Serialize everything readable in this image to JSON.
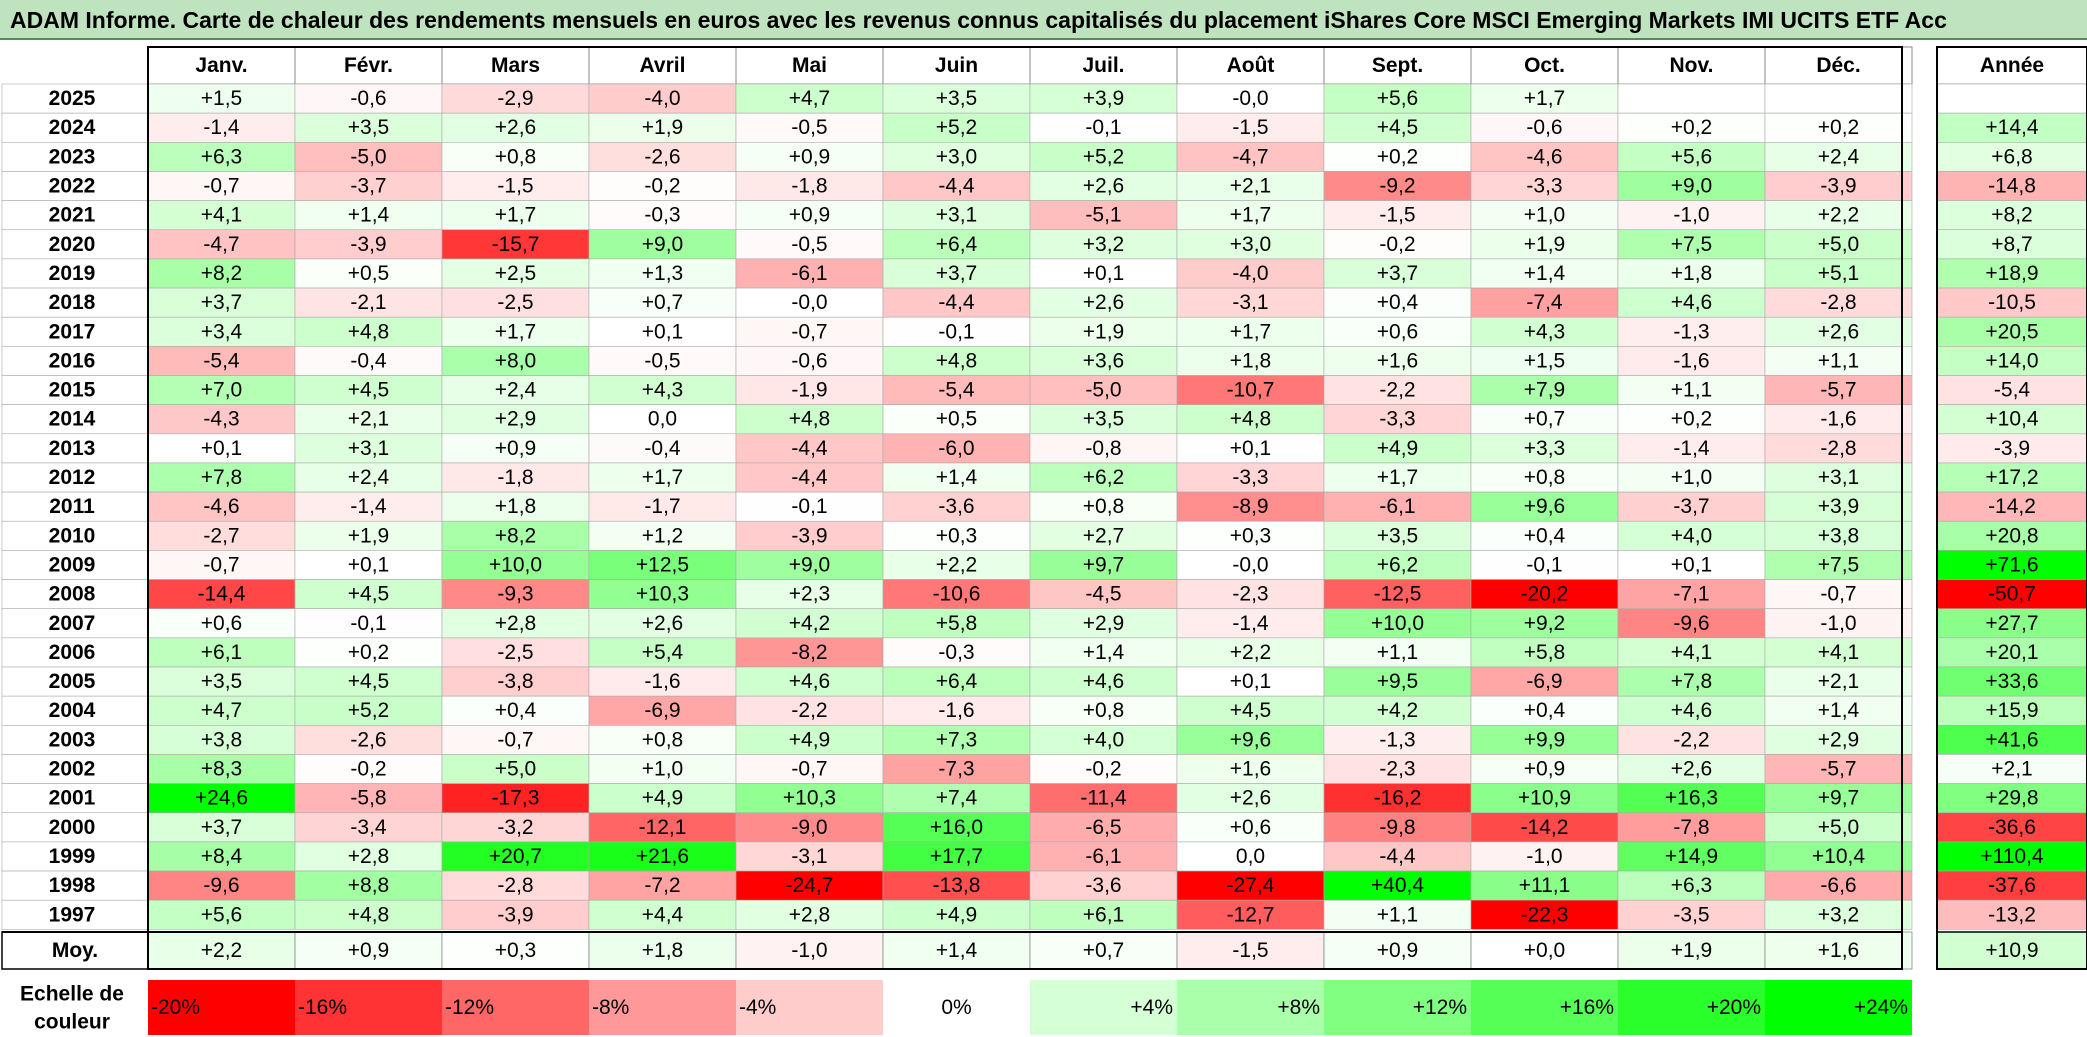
{
  "title": "ADAM Informe. Carte de chaleur des rendements mensuels en euros avec les revenus connus capitalisés du placement iShares Core MSCI Emerging Markets IMI UCITS ETF Acc",
  "months": [
    "Janv.",
    "Févr.",
    "Mars",
    "Avril",
    "Mai",
    "Juin",
    "Juil.",
    "Août",
    "Sept.",
    "Oct.",
    "Nov.",
    "Déc."
  ],
  "year_header": "Année",
  "avg_label": "Moy.",
  "scale_label": "Echelle de couleur",
  "colors": {
    "neg_max": "#ff0000",
    "pos_max": "#00ff00",
    "neutral": "#ffffff",
    "title_bg": "#bfe3bf",
    "border": "#000000"
  },
  "chart_data": {
    "type": "heatmap",
    "title": "ADAM Informe. Carte de chaleur des rendements mensuels en euros avec les revenus connus capitalisés du placement iShares Core MSCI Emerging Markets IMI UCITS ETF Acc",
    "color_scale": [
      -20,
      24
    ],
    "rows": [
      {
        "year": "2025",
        "months": [
          "+1,5",
          "-0,6",
          "-2,9",
          "-4,0",
          "+4,7",
          "+3,5",
          "+3,9",
          "-0,0",
          "+5,6",
          "+1,7",
          "",
          ""
        ],
        "annual": ""
      },
      {
        "year": "2024",
        "months": [
          "-1,4",
          "+3,5",
          "+2,6",
          "+1,9",
          "-0,5",
          "+5,2",
          "-0,1",
          "-1,5",
          "+4,5",
          "-0,6",
          "+0,2",
          "+0,2"
        ],
        "annual": "+14,4"
      },
      {
        "year": "2023",
        "months": [
          "+6,3",
          "-5,0",
          "+0,8",
          "-2,6",
          "+0,9",
          "+3,0",
          "+5,2",
          "-4,7",
          "+0,2",
          "-4,6",
          "+5,6",
          "+2,4"
        ],
        "annual": "+6,8"
      },
      {
        "year": "2022",
        "months": [
          "-0,7",
          "-3,7",
          "-1,5",
          "-0,2",
          "-1,8",
          "-4,4",
          "+2,6",
          "+2,1",
          "-9,2",
          "-3,3",
          "+9,0",
          "-3,9"
        ],
        "annual": "-14,8"
      },
      {
        "year": "2021",
        "months": [
          "+4,1",
          "+1,4",
          "+1,7",
          "-0,3",
          "+0,9",
          "+3,1",
          "-5,1",
          "+1,7",
          "-1,5",
          "+1,0",
          "-1,0",
          "+2,2"
        ],
        "annual": "+8,2"
      },
      {
        "year": "2020",
        "months": [
          "-4,7",
          "-3,9",
          "-15,7",
          "+9,0",
          "-0,5",
          "+6,4",
          "+3,2",
          "+3,0",
          "-0,2",
          "+1,9",
          "+7,5",
          "+5,0"
        ],
        "annual": "+8,7"
      },
      {
        "year": "2019",
        "months": [
          "+8,2",
          "+0,5",
          "+2,5",
          "+1,3",
          "-6,1",
          "+3,7",
          "+0,1",
          "-4,0",
          "+3,7",
          "+1,4",
          "+1,8",
          "+5,1"
        ],
        "annual": "+18,9"
      },
      {
        "year": "2018",
        "months": [
          "+3,7",
          "-2,1",
          "-2,5",
          "+0,7",
          "-0,0",
          "-4,4",
          "+2,6",
          "-3,1",
          "+0,4",
          "-7,4",
          "+4,6",
          "-2,8"
        ],
        "annual": "-10,5"
      },
      {
        "year": "2017",
        "months": [
          "+3,4",
          "+4,8",
          "+1,7",
          "+0,1",
          "-0,7",
          "-0,1",
          "+1,9",
          "+1,7",
          "+0,6",
          "+4,3",
          "-1,3",
          "+2,6"
        ],
        "annual": "+20,5"
      },
      {
        "year": "2016",
        "months": [
          "-5,4",
          "-0,4",
          "+8,0",
          "-0,5",
          "-0,6",
          "+4,8",
          "+3,6",
          "+1,8",
          "+1,6",
          "+1,5",
          "-1,6",
          "+1,1"
        ],
        "annual": "+14,0"
      },
      {
        "year": "2015",
        "months": [
          "+7,0",
          "+4,5",
          "+2,4",
          "+4,3",
          "-1,9",
          "-5,4",
          "-5,0",
          "-10,7",
          "-2,2",
          "+7,9",
          "+1,1",
          "-5,7"
        ],
        "annual": "-5,4"
      },
      {
        "year": "2014",
        "months": [
          "-4,3",
          "+2,1",
          "+2,9",
          "0,0",
          "+4,8",
          "+0,5",
          "+3,5",
          "+4,8",
          "-3,3",
          "+0,7",
          "+0,2",
          "-1,6"
        ],
        "annual": "+10,4"
      },
      {
        "year": "2013",
        "months": [
          "+0,1",
          "+3,1",
          "+0,9",
          "-0,4",
          "-4,4",
          "-6,0",
          "-0,8",
          "+0,1",
          "+4,9",
          "+3,3",
          "-1,4",
          "-2,8"
        ],
        "annual": "-3,9"
      },
      {
        "year": "2012",
        "months": [
          "+7,8",
          "+2,4",
          "-1,8",
          "+1,7",
          "-4,4",
          "+1,4",
          "+6,2",
          "-3,3",
          "+1,7",
          "+0,8",
          "+1,0",
          "+3,1"
        ],
        "annual": "+17,2"
      },
      {
        "year": "2011",
        "months": [
          "-4,6",
          "-1,4",
          "+1,8",
          "-1,7",
          "-0,1",
          "-3,6",
          "+0,8",
          "-8,9",
          "-6,1",
          "+9,6",
          "-3,7",
          "+3,9"
        ],
        "annual": "-14,2"
      },
      {
        "year": "2010",
        "months": [
          "-2,7",
          "+1,9",
          "+8,2",
          "+1,2",
          "-3,9",
          "+0,3",
          "+2,7",
          "+0,3",
          "+3,5",
          "+0,4",
          "+4,0",
          "+3,8"
        ],
        "annual": "+20,8"
      },
      {
        "year": "2009",
        "months": [
          "-0,7",
          "+0,1",
          "+10,0",
          "+12,5",
          "+9,0",
          "+2,2",
          "+9,7",
          "-0,0",
          "+6,2",
          "-0,1",
          "+0,1",
          "+7,5"
        ],
        "annual": "+71,6"
      },
      {
        "year": "2008",
        "months": [
          "-14,4",
          "+4,5",
          "-9,3",
          "+10,3",
          "+2,3",
          "-10,6",
          "-4,5",
          "-2,3",
          "-12,5",
          "-20,2",
          "-7,1",
          "-0,7"
        ],
        "annual": "-50,7"
      },
      {
        "year": "2007",
        "months": [
          "+0,6",
          "-0,1",
          "+2,8",
          "+2,6",
          "+4,2",
          "+5,8",
          "+2,9",
          "-1,4",
          "+10,0",
          "+9,2",
          "-9,6",
          "-1,0"
        ],
        "annual": "+27,7"
      },
      {
        "year": "2006",
        "months": [
          "+6,1",
          "+0,2",
          "-2,5",
          "+5,4",
          "-8,2",
          "-0,3",
          "+1,4",
          "+2,2",
          "+1,1",
          "+5,8",
          "+4,1",
          "+4,1"
        ],
        "annual": "+20,1"
      },
      {
        "year": "2005",
        "months": [
          "+3,5",
          "+4,5",
          "-3,8",
          "-1,6",
          "+4,6",
          "+6,4",
          "+4,6",
          "+0,1",
          "+9,5",
          "-6,9",
          "+7,8",
          "+2,1"
        ],
        "annual": "+33,6"
      },
      {
        "year": "2004",
        "months": [
          "+4,7",
          "+5,2",
          "+0,4",
          "-6,9",
          "-2,2",
          "-1,6",
          "+0,8",
          "+4,5",
          "+4,2",
          "+0,4",
          "+4,6",
          "+1,4"
        ],
        "annual": "+15,9"
      },
      {
        "year": "2003",
        "months": [
          "+3,8",
          "-2,6",
          "-0,7",
          "+0,8",
          "+4,9",
          "+7,3",
          "+4,0",
          "+9,6",
          "-1,3",
          "+9,9",
          "-2,2",
          "+2,9"
        ],
        "annual": "+41,6"
      },
      {
        "year": "2002",
        "months": [
          "+8,3",
          "-0,2",
          "+5,0",
          "+1,0",
          "-0,7",
          "-7,3",
          "-0,2",
          "+1,6",
          "-2,3",
          "+0,9",
          "+2,6",
          "-5,7"
        ],
        "annual": "+2,1"
      },
      {
        "year": "2001",
        "months": [
          "+24,6",
          "-5,8",
          "-17,3",
          "+4,9",
          "+10,3",
          "+7,4",
          "-11,4",
          "+2,6",
          "-16,2",
          "+10,9",
          "+16,3",
          "+9,7"
        ],
        "annual": "+29,8"
      },
      {
        "year": "2000",
        "months": [
          "+3,7",
          "-3,4",
          "-3,2",
          "-12,1",
          "-9,0",
          "+16,0",
          "-6,5",
          "+0,6",
          "-9,8",
          "-14,2",
          "-7,8",
          "+5,0"
        ],
        "annual": "-36,6"
      },
      {
        "year": "1999",
        "months": [
          "+8,4",
          "+2,8",
          "+20,7",
          "+21,6",
          "-3,1",
          "+17,7",
          "-6,1",
          "0,0",
          "-4,4",
          "-1,0",
          "+14,9",
          "+10,4"
        ],
        "annual": "+110,4"
      },
      {
        "year": "1998",
        "months": [
          "-9,6",
          "+8,8",
          "-2,8",
          "-7,2",
          "-24,7",
          "-13,8",
          "-3,6",
          "-27,4",
          "+40,4",
          "+11,1",
          "+6,3",
          "-6,6"
        ],
        "annual": "-37,6"
      },
      {
        "year": "1997",
        "months": [
          "+5,6",
          "+4,8",
          "-3,9",
          "+4,4",
          "+2,8",
          "+4,9",
          "+6,1",
          "-12,7",
          "+1,1",
          "-22,3",
          "-3,5",
          "+3,2"
        ],
        "annual": "-13,2"
      }
    ],
    "average": {
      "months": [
        "+2,2",
        "+0,9",
        "+0,3",
        "+1,8",
        "-1,0",
        "+1,4",
        "+0,7",
        "-1,5",
        "+0,9",
        "+0,0",
        "+1,9",
        "+1,6"
      ],
      "annual": "+10,9"
    },
    "scale": [
      "-20%",
      "-16%",
      "-12%",
      "-8%",
      "-4%",
      "0%",
      "+4%",
      "+8%",
      "+12%",
      "+16%",
      "+20%",
      "+24%"
    ]
  }
}
